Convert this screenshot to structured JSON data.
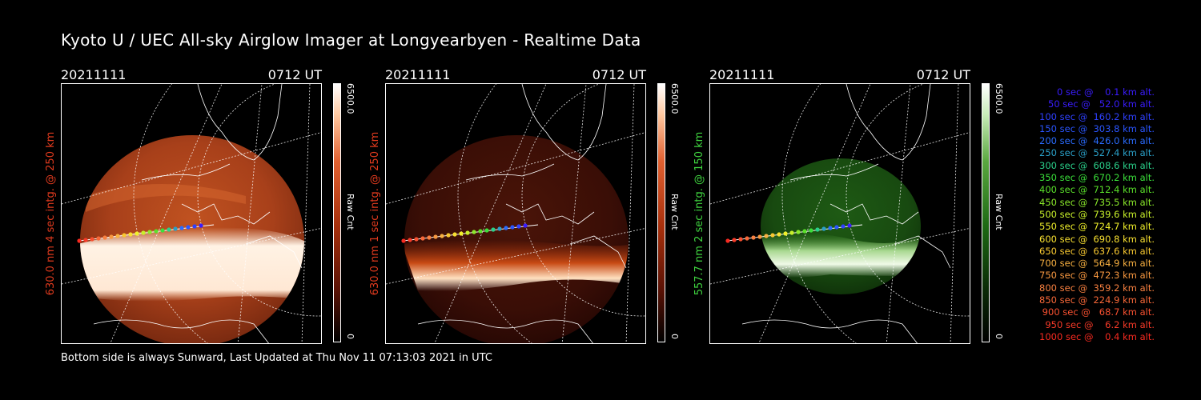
{
  "title": "Kyoto U / UEC All-sky Airglow Imager at Longyearbyen - Realtime Data",
  "footer": "Bottom side is always Sunward, Last Updated at Thu Nov 11 07:13:03 2021 in UTC",
  "panels": [
    {
      "date": "20211111",
      "time": "0712 UT",
      "ylabel": "630.0 nm 4 sec intg. @ 250 km",
      "label_color": "#e03a1e",
      "cbar_max": "6500.0",
      "cbar_min": "0",
      "cbar_unit": "Raw Cnt",
      "colormap": "red"
    },
    {
      "date": "20211111",
      "time": "0712 UT",
      "ylabel": "630.0 nm 1 sec intg. @ 250 km",
      "label_color": "#e03a1e",
      "cbar_max": "6500.0",
      "cbar_min": "0",
      "cbar_unit": "Raw Cnt",
      "colormap": "red"
    },
    {
      "date": "20211111",
      "time": "0712 UT",
      "ylabel": "557.7 nm 2 sec intg. @ 150 km",
      "label_color": "#3fd23f",
      "cbar_max": "6500.0",
      "cbar_min": "0",
      "cbar_unit": "Raw Cnt",
      "colormap": "green"
    }
  ],
  "legend": [
    {
      "text": "   0 sec @    0.1 km alt.",
      "color": "#3a1cff"
    },
    {
      "text": "  50 sec @   52.0 km alt.",
      "color": "#3a1cff"
    },
    {
      "text": " 100 sec @  160.2 km alt.",
      "color": "#2e40ff"
    },
    {
      "text": " 150 sec @  303.8 km alt.",
      "color": "#2a55ff"
    },
    {
      "text": " 200 sec @  426.0 km alt.",
      "color": "#2a6cff"
    },
    {
      "text": " 250 sec @  527.4 km alt.",
      "color": "#2aa0c8"
    },
    {
      "text": " 300 sec @  608.6 km alt.",
      "color": "#2ad08a"
    },
    {
      "text": " 350 sec @  670.2 km alt.",
      "color": "#3ae03a"
    },
    {
      "text": " 400 sec @  712.4 km alt.",
      "color": "#5ae02a"
    },
    {
      "text": " 450 sec @  735.5 km alt.",
      "color": "#8ae82a"
    },
    {
      "text": " 500 sec @  739.6 km alt.",
      "color": "#c8f02a"
    },
    {
      "text": " 550 sec @  724.7 km alt.",
      "color": "#f0f02a"
    },
    {
      "text": " 600 sec @  690.8 km alt.",
      "color": "#f8e030"
    },
    {
      "text": " 650 sec @  637.6 km alt.",
      "color": "#f8c830"
    },
    {
      "text": " 700 sec @  564.9 km alt.",
      "color": "#f8b040"
    },
    {
      "text": " 750 sec @  472.3 km alt.",
      "color": "#f89840"
    },
    {
      "text": " 800 sec @  359.2 km alt.",
      "color": "#f88040"
    },
    {
      "text": " 850 sec @  224.9 km alt.",
      "color": "#f86838"
    },
    {
      "text": " 900 sec @   68.7 km alt.",
      "color": "#f85030"
    },
    {
      "text": " 950 sec @    6.2 km alt.",
      "color": "#f83a28"
    },
    {
      "text": "1000 sec @    0.4 km alt.",
      "color": "#f82a20"
    }
  ]
}
